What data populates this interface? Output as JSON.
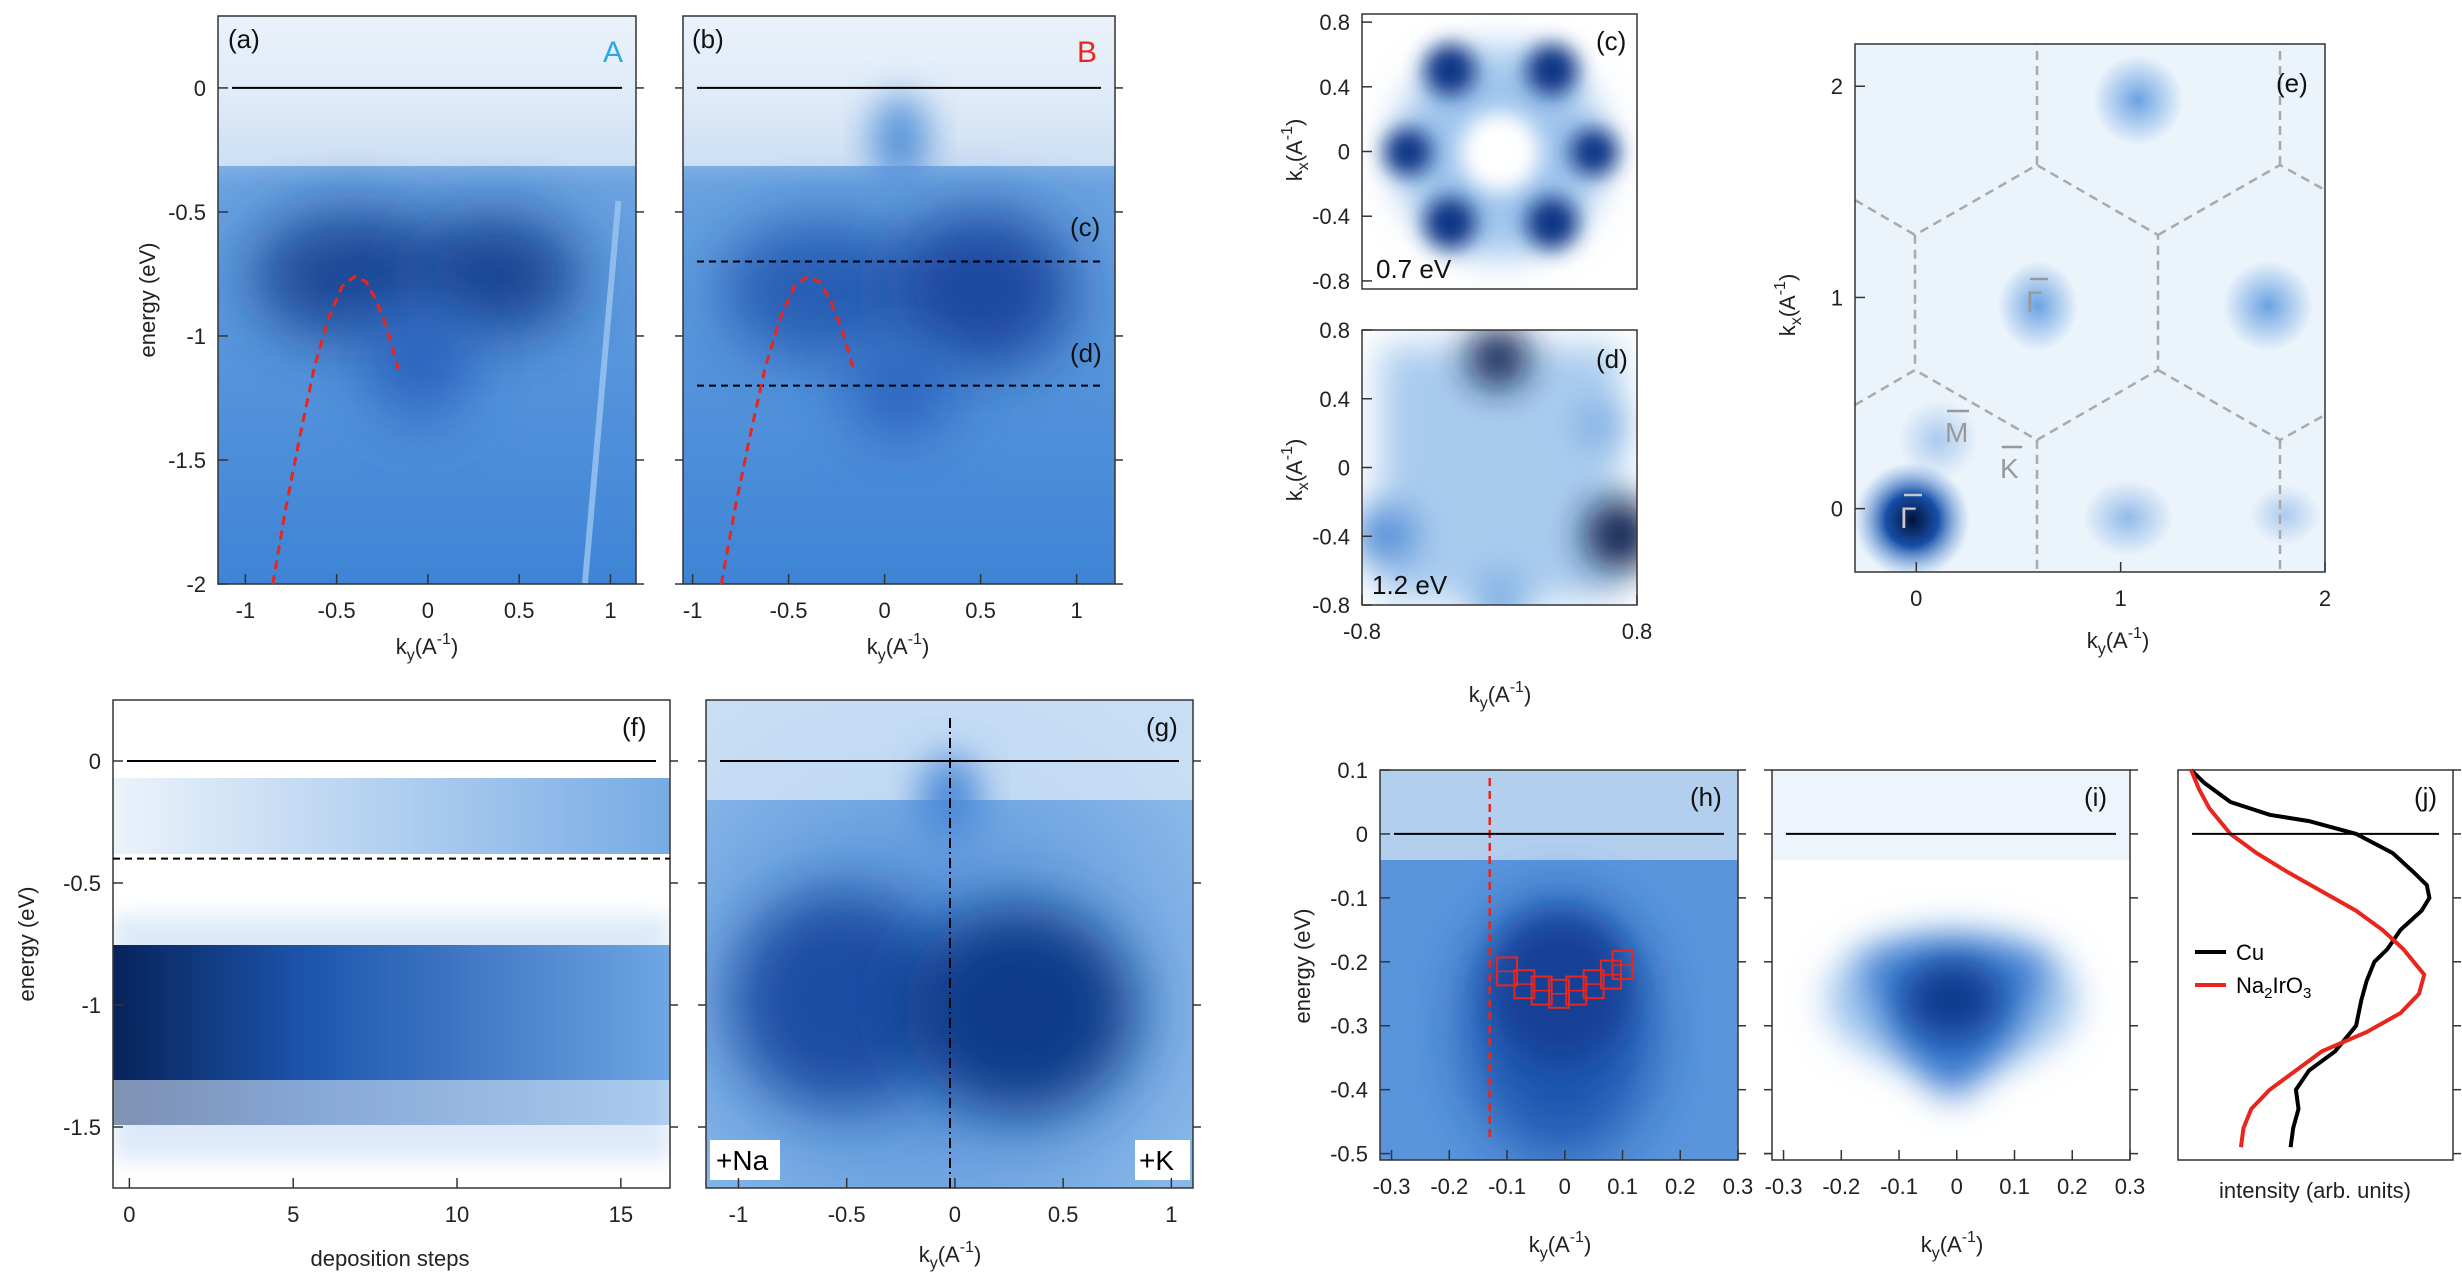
{
  "chart_data": [
    {
      "id": "a",
      "type": "heatmap",
      "panel_label": "(a)",
      "tag": "A",
      "tag_color": "#2aa7e6",
      "xlabel": "k_y(A^-1)",
      "ylabel": "energy (eV)",
      "xlim": [
        -1.1,
        1.1
      ],
      "ylim": [
        -2.0,
        0.25
      ],
      "xticks": [
        "-1",
        "-0.5",
        "0",
        "0.5",
        "1"
      ],
      "yticks": [
        "0",
        "-0.5",
        "-1",
        "-1.5",
        "-2"
      ],
      "fermi_level": 0,
      "dispersion_fit": {
        "k": [
          -0.85,
          -0.78,
          -0.7,
          -0.62,
          -0.54,
          -0.47,
          -0.4,
          -0.34,
          -0.28,
          -0.22,
          -0.16
        ],
        "E": [
          -2.0,
          -1.7,
          -1.4,
          -1.12,
          -0.92,
          -0.8,
          -0.76,
          -0.78,
          -0.86,
          -0.98,
          -1.14
        ]
      }
    },
    {
      "id": "b",
      "type": "heatmap",
      "panel_label": "(b)",
      "tag": "B",
      "tag_color": "#e8261e",
      "xlabel": "k_y(A^-1)",
      "xlim": [
        -1.1,
        1.1
      ],
      "ylim": [
        -2.0,
        0.25
      ],
      "xticks": [
        "-1",
        "-0.5",
        "0",
        "0.5",
        "1"
      ],
      "fermi_level": 0,
      "cut_lines": [
        {
          "E": -0.7,
          "label": "(c)"
        },
        {
          "E": -1.2,
          "label": "(d)"
        }
      ],
      "dispersion_fit": {
        "k": [
          -0.85,
          -0.78,
          -0.7,
          -0.62,
          -0.54,
          -0.47,
          -0.4,
          -0.34,
          -0.28,
          -0.22,
          -0.16
        ],
        "E": [
          -2.0,
          -1.7,
          -1.4,
          -1.12,
          -0.92,
          -0.8,
          -0.76,
          -0.78,
          -0.86,
          -0.98,
          -1.14
        ]
      }
    },
    {
      "id": "c",
      "type": "heatmap",
      "panel_label": "(c)",
      "annotation": "0.7 eV",
      "ylabel": "k_x(A^-1)",
      "xlim": [
        -0.8,
        0.8
      ],
      "ylim": [
        -0.8,
        0.8
      ],
      "yticks": [
        "0.8",
        "0.4",
        "0",
        "-0.4",
        "-0.8"
      ]
    },
    {
      "id": "d",
      "type": "heatmap",
      "panel_label": "(d)",
      "annotation": "1.2 eV",
      "xlabel": "k_y(A^-1)",
      "ylabel": "k_x(A^-1)",
      "xlim": [
        -0.8,
        0.8
      ],
      "ylim": [
        -0.8,
        0.8
      ],
      "xticks": [
        "-0.8",
        "0.8"
      ],
      "yticks": [
        "0.8",
        "0.4",
        "0",
        "-0.4",
        "-0.8"
      ]
    },
    {
      "id": "e",
      "type": "heatmap",
      "panel_label": "(e)",
      "xlabel": "k_y(A^-1)",
      "ylabel": "k_x(A^-1)",
      "xlim": [
        -0.3,
        2.0
      ],
      "ylim": [
        -0.3,
        2.2
      ],
      "xticks": [
        "0",
        "1",
        "2"
      ],
      "yticks": [
        "2",
        "1",
        "0"
      ],
      "symmetry_points": [
        "Γ",
        "Γ",
        "M",
        "K"
      ]
    },
    {
      "id": "f",
      "type": "heatmap",
      "panel_label": "(f)",
      "xlabel": "deposition steps",
      "ylabel": "energy (eV)",
      "xlim": [
        -0.5,
        16.5
      ],
      "ylim": [
        -1.75,
        0.25
      ],
      "xticks": [
        "0",
        "5",
        "10",
        "15"
      ],
      "yticks": [
        "0",
        "-0.5",
        "-1",
        "-1.5"
      ],
      "fermi_level": 0,
      "cut_lines": [
        {
          "E": -0.4,
          "label": ""
        }
      ]
    },
    {
      "id": "g",
      "type": "heatmap",
      "panel_label": "(g)",
      "xlabel": "k_y(A^-1)",
      "xlim": [
        -1.1,
        1.1
      ],
      "ylim": [
        -1.75,
        0.25
      ],
      "xticks": [
        "-1",
        "-0.5",
        "0",
        "0.5",
        "1"
      ],
      "fermi_level": 0,
      "left_label": "+Na",
      "right_label": "+K"
    },
    {
      "id": "h",
      "type": "heatmap",
      "panel_label": "(h)",
      "xlabel": "k_y(A^-1)",
      "ylabel": "energy (eV)",
      "xlim": [
        -0.32,
        0.3
      ],
      "ylim": [
        -0.51,
        0.1
      ],
      "xticks": [
        "-0.3",
        "-0.2",
        "-0.1",
        "0",
        "0.1",
        "0.2",
        "0.3"
      ],
      "yticks": [
        "0.1",
        "0",
        "-0.1",
        "-0.2",
        "-0.3",
        "-0.4",
        "-0.5"
      ],
      "fermi_level": 0,
      "vertical_cut_k": -0.13,
      "band_points": {
        "k": [
          -0.1,
          -0.07,
          -0.04,
          -0.01,
          0.02,
          0.05,
          0.08,
          0.1
        ],
        "E": [
          -0.215,
          -0.235,
          -0.245,
          -0.25,
          -0.245,
          -0.235,
          -0.22,
          -0.205
        ]
      }
    },
    {
      "id": "i",
      "type": "heatmap",
      "panel_label": "(i)",
      "xlabel": "k_y(A^-1)",
      "xlim": [
        -0.32,
        0.3
      ],
      "ylim": [
        -0.51,
        0.1
      ],
      "xticks": [
        "-0.3",
        "-0.2",
        "-0.1",
        "0",
        "0.1",
        "0.2",
        "0.3"
      ],
      "fermi_level": 0
    },
    {
      "id": "j",
      "type": "line",
      "panel_label": "(j)",
      "xlabel": "intensity (arb. units)",
      "ylim": [
        -0.51,
        0.1
      ],
      "fermi_level": 0,
      "series": [
        {
          "name": "Cu",
          "color": "#000000",
          "E": [
            0.1,
            0.08,
            0.05,
            0.03,
            0.02,
            0.0,
            -0.03,
            -0.06,
            -0.08,
            -0.1,
            -0.12,
            -0.15,
            -0.18,
            -0.2,
            -0.23,
            -0.26,
            -0.3,
            -0.34,
            -0.37,
            -0.4,
            -0.43,
            -0.46,
            -0.49
          ],
          "I": [
            0.05,
            0.1,
            0.2,
            0.35,
            0.5,
            0.68,
            0.82,
            0.9,
            0.95,
            0.96,
            0.93,
            0.85,
            0.8,
            0.75,
            0.72,
            0.7,
            0.68,
            0.6,
            0.5,
            0.45,
            0.46,
            0.44,
            0.43
          ]
        },
        {
          "name": "Na2IrO3",
          "color": "#e8261e",
          "E": [
            0.1,
            0.07,
            0.04,
            0.0,
            -0.03,
            -0.06,
            -0.09,
            -0.12,
            -0.15,
            -0.18,
            -0.2,
            -0.22,
            -0.25,
            -0.28,
            -0.31,
            -0.34,
            -0.37,
            -0.4,
            -0.43,
            -0.46,
            -0.49
          ],
          "I": [
            0.05,
            0.08,
            0.12,
            0.2,
            0.3,
            0.42,
            0.55,
            0.68,
            0.78,
            0.86,
            0.9,
            0.94,
            0.92,
            0.85,
            0.72,
            0.55,
            0.45,
            0.35,
            0.28,
            0.25,
            0.24
          ]
        }
      ],
      "legend": [
        "Cu",
        "Na2IrO3"
      ]
    }
  ]
}
